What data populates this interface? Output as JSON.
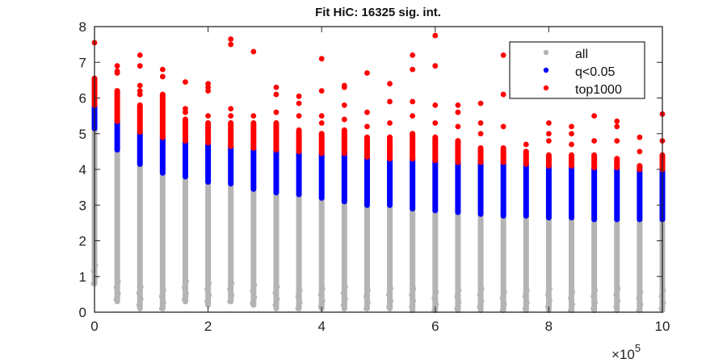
{
  "chart_data": {
    "type": "scatter",
    "title": "Fit HiC: 16325 sig. int.",
    "xlabel": "",
    "ylabel": "",
    "x_multiplier_label": "×10",
    "x_multiplier_exponent": "5",
    "xlim": [
      0,
      10
    ],
    "ylim": [
      0,
      8
    ],
    "xticks": [
      "0",
      "2",
      "4",
      "6",
      "8",
      "10"
    ],
    "yticks": [
      "0",
      "1",
      "2",
      "3",
      "4",
      "5",
      "6",
      "7",
      "8"
    ],
    "grid": false,
    "legend": {
      "placement": "top-right",
      "entries": [
        {
          "label": "all",
          "color": "#b4b4b4"
        },
        {
          "label": "q<0.05",
          "color": "#0000ff"
        },
        {
          "label": "top1000",
          "color": "#ff0000"
        }
      ]
    },
    "columns": [
      {
        "x": 0.0,
        "all": [
          0.8,
          5.15
        ],
        "q": [
          5.15,
          5.8
        ],
        "top": [
          5.8,
          6.55
        ],
        "top_outliers": [
          7.55
        ]
      },
      {
        "x": 0.4,
        "all": [
          0.3,
          4.55
        ],
        "q": [
          4.55,
          5.35
        ],
        "top": [
          5.35,
          6.2
        ],
        "top_outliers": [
          6.7,
          6.75,
          6.9
        ]
      },
      {
        "x": 0.8,
        "all": [
          0.1,
          4.15
        ],
        "q": [
          4.15,
          5.05
        ],
        "top": [
          5.05,
          5.8
        ],
        "top_outliers": [
          6.1,
          6.2,
          6.35,
          6.9,
          7.2
        ]
      },
      {
        "x": 1.2,
        "all": [
          0.1,
          3.9
        ],
        "q": [
          3.9,
          4.9
        ],
        "top": [
          4.9,
          6.1
        ],
        "top_outliers": [
          6.6,
          6.8
        ]
      },
      {
        "x": 1.6,
        "all": [
          0.3,
          3.8
        ],
        "q": [
          3.8,
          4.8
        ],
        "top": [
          4.8,
          5.4
        ],
        "top_outliers": [
          5.6,
          5.7,
          6.45
        ]
      },
      {
        "x": 2.0,
        "all": [
          0.2,
          3.65
        ],
        "q": [
          3.65,
          4.75
        ],
        "top": [
          4.75,
          5.3
        ],
        "top_outliers": [
          5.5,
          6.2,
          6.3,
          6.4
        ]
      },
      {
        "x": 2.4,
        "all": [
          0.3,
          3.6
        ],
        "q": [
          3.6,
          4.65
        ],
        "top": [
          4.65,
          5.3
        ],
        "top_outliers": [
          5.5,
          5.7,
          7.5,
          7.65
        ]
      },
      {
        "x": 2.8,
        "all": [
          0.2,
          3.45
        ],
        "q": [
          3.45,
          4.6
        ],
        "top": [
          4.6,
          5.3
        ],
        "top_outliers": [
          5.5,
          7.3
        ]
      },
      {
        "x": 3.2,
        "all": [
          0.1,
          3.35
        ],
        "q": [
          3.35,
          4.55
        ],
        "top": [
          4.55,
          5.3
        ],
        "top_outliers": [
          5.6,
          6.1,
          6.3
        ]
      },
      {
        "x": 3.6,
        "all": [
          0.1,
          3.3
        ],
        "q": [
          3.3,
          4.5
        ],
        "top": [
          4.5,
          5.1
        ],
        "top_outliers": [
          5.5,
          5.85,
          6.05
        ]
      },
      {
        "x": 4.0,
        "all": [
          0.1,
          3.2
        ],
        "q": [
          3.2,
          4.45
        ],
        "top": [
          4.45,
          5.0
        ],
        "top_outliers": [
          5.3,
          5.5,
          6.2,
          7.1
        ]
      },
      {
        "x": 4.4,
        "all": [
          0.1,
          3.1
        ],
        "q": [
          3.1,
          4.45
        ],
        "top": [
          4.45,
          5.1
        ],
        "top_outliers": [
          5.4,
          5.8,
          6.3,
          6.35
        ]
      },
      {
        "x": 4.8,
        "all": [
          0.1,
          3.0
        ],
        "q": [
          3.0,
          4.35
        ],
        "top": [
          4.35,
          4.9
        ],
        "top_outliers": [
          5.2,
          5.6,
          6.7
        ]
      },
      {
        "x": 5.2,
        "all": [
          0.1,
          3.0
        ],
        "q": [
          3.0,
          4.3
        ],
        "top": [
          4.3,
          4.9
        ],
        "top_outliers": [
          5.3,
          5.9,
          6.4
        ]
      },
      {
        "x": 5.6,
        "all": [
          0.05,
          2.9
        ],
        "q": [
          2.9,
          4.3
        ],
        "top": [
          4.3,
          5.0
        ],
        "top_outliers": [
          5.5,
          5.9,
          6.8,
          7.2
        ]
      },
      {
        "x": 6.0,
        "all": [
          0.05,
          2.85
        ],
        "q": [
          2.85,
          4.25
        ],
        "top": [
          4.25,
          4.9
        ],
        "top_outliers": [
          5.3,
          5.8,
          6.9,
          7.75
        ]
      },
      {
        "x": 6.4,
        "all": [
          0.05,
          2.8
        ],
        "q": [
          2.8,
          4.2
        ],
        "top": [
          4.2,
          4.8
        ],
        "top_outliers": [
          5.2,
          5.6,
          5.8
        ]
      },
      {
        "x": 6.8,
        "all": [
          0.05,
          2.75
        ],
        "q": [
          2.75,
          4.2
        ],
        "top": [
          4.2,
          4.6
        ],
        "top_outliers": [
          5.0,
          5.3,
          5.85
        ]
      },
      {
        "x": 7.2,
        "all": [
          0.05,
          2.7
        ],
        "q": [
          2.7,
          4.2
        ],
        "top": [
          4.2,
          4.6
        ],
        "top_outliers": [
          5.2,
          6.1,
          7.2
        ]
      },
      {
        "x": 7.6,
        "all": [
          0.05,
          2.7
        ],
        "q": [
          2.7,
          4.15
        ],
        "top": [
          4.15,
          4.5
        ],
        "top_outliers": [
          4.7
        ]
      },
      {
        "x": 8.0,
        "all": [
          0.05,
          2.65
        ],
        "q": [
          2.65,
          4.1
        ],
        "top": [
          4.1,
          4.4
        ],
        "top_outliers": [
          4.8,
          5.0,
          5.3
        ]
      },
      {
        "x": 8.4,
        "all": [
          0.05,
          2.65
        ],
        "q": [
          2.65,
          4.1
        ],
        "top": [
          4.1,
          4.4
        ],
        "top_outliers": [
          4.7,
          5.0,
          5.2
        ]
      },
      {
        "x": 8.8,
        "all": [
          0.05,
          2.6
        ],
        "q": [
          2.6,
          4.05
        ],
        "top": [
          4.05,
          4.4
        ],
        "top_outliers": [
          4.8,
          5.5
        ]
      },
      {
        "x": 9.2,
        "all": [
          0.05,
          2.6
        ],
        "q": [
          2.6,
          4.05
        ],
        "top": [
          4.05,
          4.3
        ],
        "top_outliers": [
          4.8,
          5.2,
          5.35
        ]
      },
      {
        "x": 9.6,
        "all": [
          0.05,
          2.6
        ],
        "q": [
          2.6,
          4.0
        ],
        "top": [
          4.0,
          4.1
        ],
        "top_outliers": [
          4.5,
          4.9
        ]
      },
      {
        "x": 10.0,
        "all": [
          0.05,
          2.6
        ],
        "q": [
          2.6,
          4.0
        ],
        "top": [
          4.0,
          4.4
        ],
        "top_outliers": [
          4.8,
          5.55
        ]
      }
    ]
  }
}
